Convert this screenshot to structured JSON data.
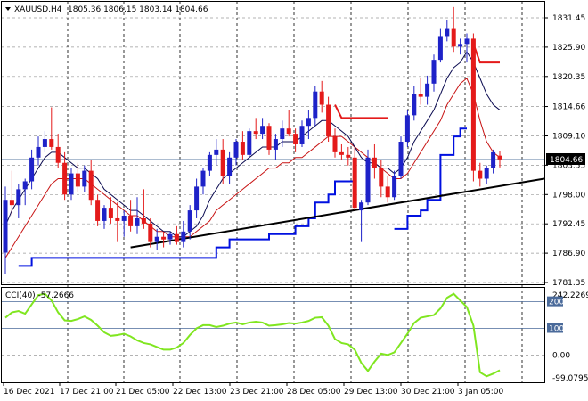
{
  "header": {
    "symbol_text": "XAUUSD,H4",
    "ohlc_text": "1805.36 1806.15 1803.14 1804.66"
  },
  "price_axis": {
    "ticks": [
      "1831.45",
      "1825.90",
      "1820.35",
      "1814.66",
      "1809.10",
      "1803.55",
      "1798.00",
      "1792.45",
      "1786.90",
      "1781.35"
    ],
    "current_price_label": "1804.66"
  },
  "cci_panel": {
    "label": "CCI(40) -57.2666",
    "ticks": [
      "242.2269",
      "200",
      "100",
      "0.00",
      "-99.0795"
    ]
  },
  "time_axis": {
    "labels": [
      "16 Dec 2021",
      "17 Dec 21:00",
      "21 Dec 05:00",
      "22 Dec 13:00",
      "23 Dec 21:00",
      "28 Dec 05:00",
      "29 Dec 13:00",
      "30 Dec 21:00",
      "3 Jan 05:00"
    ]
  },
  "colors": {
    "bull": "#1e22c8",
    "bear": "#e41a1a",
    "ma_fast": "#0a0a50",
    "ma_slow": "#c81414",
    "step_line": "#0010e0",
    "trendline": "#000000",
    "cci": "#80e620",
    "grid": "#9a9a9a",
    "level": "#4a6a9a"
  },
  "chart_data": {
    "type": "candlestick",
    "symbol": "XAUUSD",
    "timeframe": "H4",
    "ylim": [
      1781.35,
      1834.5
    ],
    "candles": [
      [
        1787.0,
        1799.5,
        1783.0,
        1797.0
      ],
      [
        1797.0,
        1802.5,
        1794.0,
        1796.0
      ],
      [
        1796.0,
        1800.0,
        1793.5,
        1799.0
      ],
      [
        1799.0,
        1801.0,
        1796.0,
        1800.5
      ],
      [
        1800.5,
        1806.5,
        1799.0,
        1805.0
      ],
      [
        1805.0,
        1809.0,
        1803.5,
        1807.0
      ],
      [
        1807.0,
        1810.0,
        1806.0,
        1808.5
      ],
      [
        1808.5,
        1814.5,
        1806.5,
        1807.0
      ],
      [
        1807.0,
        1809.5,
        1803.0,
        1804.0
      ],
      [
        1804.0,
        1806.0,
        1797.0,
        1798.0
      ],
      [
        1798.0,
        1803.0,
        1797.0,
        1802.0
      ],
      [
        1802.0,
        1804.0,
        1798.5,
        1799.5
      ],
      [
        1799.5,
        1803.5,
        1798.5,
        1802.5
      ],
      [
        1802.5,
        1804.5,
        1796.0,
        1797.0
      ],
      [
        1797.0,
        1798.0,
        1792.0,
        1793.0
      ],
      [
        1793.0,
        1796.0,
        1791.5,
        1795.5
      ],
      [
        1795.5,
        1797.5,
        1792.5,
        1793.5
      ],
      [
        1793.5,
        1796.5,
        1789.0,
        1793.0
      ],
      [
        1793.0,
        1795.0,
        1790.0,
        1794.0
      ],
      [
        1794.0,
        1797.0,
        1791.0,
        1792.0
      ],
      [
        1792.0,
        1797.5,
        1790.5,
        1793.5
      ],
      [
        1793.5,
        1799.0,
        1791.5,
        1792.5
      ],
      [
        1792.5,
        1793.5,
        1788.0,
        1789.0
      ],
      [
        1789.0,
        1791.5,
        1787.5,
        1790.0
      ],
      [
        1790.0,
        1791.0,
        1788.0,
        1789.5
      ],
      [
        1789.5,
        1791.0,
        1788.5,
        1790.5
      ],
      [
        1790.5,
        1792.0,
        1788.5,
        1789.0
      ],
      [
        1789.0,
        1793.0,
        1788.0,
        1791.0
      ],
      [
        1791.0,
        1796.0,
        1789.5,
        1795.0
      ],
      [
        1795.0,
        1801.0,
        1793.5,
        1799.5
      ],
      [
        1799.5,
        1803.0,
        1798.0,
        1802.5
      ],
      [
        1802.5,
        1806.0,
        1801.5,
        1805.5
      ],
      [
        1805.5,
        1808.5,
        1803.5,
        1806.5
      ],
      [
        1806.5,
        1808.5,
        1800.0,
        1801.5
      ],
      [
        1801.5,
        1806.0,
        1800.0,
        1805.0
      ],
      [
        1805.0,
        1808.5,
        1803.5,
        1808.0
      ],
      [
        1808.0,
        1810.0,
        1804.5,
        1805.5
      ],
      [
        1805.5,
        1810.5,
        1805.0,
        1810.0
      ],
      [
        1810.0,
        1812.5,
        1808.5,
        1809.5
      ],
      [
        1809.5,
        1812.5,
        1808.5,
        1811.0
      ],
      [
        1811.0,
        1811.5,
        1805.5,
        1806.5
      ],
      [
        1806.5,
        1809.5,
        1804.5,
        1808.5
      ],
      [
        1808.5,
        1812.0,
        1807.0,
        1810.5
      ],
      [
        1810.5,
        1814.0,
        1809.0,
        1809.5
      ],
      [
        1809.5,
        1810.5,
        1806.0,
        1807.5
      ],
      [
        1807.5,
        1812.0,
        1807.0,
        1811.0
      ],
      [
        1811.0,
        1814.0,
        1808.5,
        1812.5
      ],
      [
        1812.5,
        1818.5,
        1811.0,
        1817.5
      ],
      [
        1817.5,
        1819.5,
        1813.5,
        1815.0
      ],
      [
        1815.0,
        1816.5,
        1808.0,
        1809.0
      ],
      [
        1809.0,
        1810.5,
        1805.0,
        1806.0
      ],
      [
        1806.0,
        1807.5,
        1804.5,
        1805.5
      ],
      [
        1805.5,
        1807.0,
        1803.5,
        1805.0
      ],
      [
        1805.0,
        1807.0,
        1795.0,
        1795.5
      ],
      [
        1795.0,
        1797.0,
        1789.0,
        1796.5
      ],
      [
        1796.5,
        1806.5,
        1796.0,
        1805.0
      ],
      [
        1805.0,
        1807.5,
        1801.0,
        1803.0
      ],
      [
        1803.0,
        1804.5,
        1797.5,
        1799.5
      ],
      [
        1799.5,
        1801.5,
        1796.5,
        1797.5
      ],
      [
        1797.5,
        1802.5,
        1797.0,
        1801.5
      ],
      [
        1801.5,
        1809.0,
        1801.0,
        1808.0
      ],
      [
        1808.0,
        1814.0,
        1807.0,
        1813.0
      ],
      [
        1813.0,
        1818.5,
        1812.0,
        1817.0
      ],
      [
        1817.0,
        1820.0,
        1815.0,
        1816.5
      ],
      [
        1816.5,
        1820.5,
        1815.0,
        1819.0
      ],
      [
        1819.0,
        1824.5,
        1817.5,
        1823.5
      ],
      [
        1823.5,
        1829.5,
        1823.0,
        1828.0
      ],
      [
        1828.0,
        1831.0,
        1827.0,
        1829.5
      ],
      [
        1829.5,
        1833.5,
        1825.0,
        1826.0
      ],
      [
        1826.0,
        1827.5,
        1824.5,
        1826.5
      ],
      [
        1826.5,
        1828.5,
        1823.0,
        1827.5
      ],
      [
        1827.5,
        1828.5,
        1800.5,
        1802.5
      ],
      [
        1802.5,
        1804.0,
        1799.5,
        1801.0
      ],
      [
        1801.0,
        1803.5,
        1800.0,
        1803.0
      ],
      [
        1803.0,
        1806.5,
        1802.0,
        1806.0
      ],
      [
        1805.36,
        1806.15,
        1803.14,
        1804.66
      ]
    ],
    "ma_fast": [
      1792,
      1795,
      1797,
      1799,
      1801,
      1803,
      1805,
      1806,
      1806,
      1805,
      1804,
      1803,
      1803,
      1802,
      1801,
      1799,
      1798,
      1797,
      1796,
      1795,
      1795,
      1794,
      1793,
      1792,
      1791,
      1791,
      1790,
      1790,
      1791,
      1792,
      1794,
      1797,
      1799,
      1801,
      1802,
      1803,
      1804,
      1805,
      1806,
      1807,
      1807,
      1807,
      1808,
      1808,
      1808,
      1809,
      1810,
      1811,
      1812,
      1812,
      1811,
      1810,
      1809,
      1807,
      1805,
      1804,
      1804,
      1803,
      1803,
      1802,
      1803,
      1805,
      1808,
      1810,
      1812,
      1814,
      1817,
      1820,
      1822,
      1823,
      1825,
      1823,
      1820,
      1817,
      1815,
      1814
    ],
    "ma_slow": [
      1786,
      1788,
      1790,
      1792,
      1794,
      1796,
      1798,
      1800,
      1801,
      1801,
      1801,
      1801,
      1801,
      1800,
      1799,
      1798,
      1797,
      1796,
      1795,
      1794,
      1794,
      1793,
      1792,
      1791,
      1791,
      1790,
      1790,
      1790,
      1790,
      1791,
      1792,
      1793,
      1795,
      1796,
      1797,
      1798,
      1799,
      1800,
      1801,
      1802,
      1803,
      1803,
      1804,
      1804,
      1805,
      1805,
      1806,
      1807,
      1808,
      1809,
      1809,
      1809,
      1808,
      1807,
      1806,
      1805,
      1804,
      1803,
      1802,
      1801,
      1801,
      1802,
      1804,
      1806,
      1808,
      1810,
      1812,
      1815,
      1817,
      1819,
      1820,
      1817,
      1812,
      1808,
      1806,
      1805
    ],
    "step_line": [
      [
        2,
        1784.5
      ],
      [
        4,
        1786.0
      ],
      [
        6,
        1786.0
      ],
      [
        15,
        1786.0
      ],
      [
        24,
        1786.0
      ],
      [
        30,
        1786.0
      ],
      [
        32,
        1788.0
      ],
      [
        34,
        1789.5
      ],
      [
        40,
        1790.5
      ],
      [
        44,
        1792.0
      ],
      [
        46,
        1793.5
      ],
      [
        47,
        1796.5
      ],
      [
        49,
        1798.0
      ],
      [
        50,
        1800.5
      ],
      [
        53,
        1800.5
      ],
      [
        59,
        1791.5
      ],
      [
        61,
        1794.0
      ],
      [
        63,
        1795.0
      ],
      [
        64,
        1797.0
      ],
      [
        66,
        1805.5
      ],
      [
        68,
        1809.0
      ],
      [
        69,
        1810.5
      ],
      [
        70,
        1810.5
      ]
    ],
    "red_segments": [
      [
        [
          50,
          1815.0
        ],
        [
          51,
          1812.5
        ],
        [
          58,
          1812.5
        ]
      ],
      [
        [
          71,
          1826.5
        ],
        [
          72,
          1823.0
        ],
        [
          75,
          1823.0
        ]
      ]
    ],
    "trendline": [
      [
        19,
        1788.0
      ],
      [
        79,
        1801.0
      ]
    ],
    "cci": {
      "ylim": [
        -99.0795,
        242.2269
      ],
      "levels": [
        200,
        100,
        0
      ],
      "values": [
        140,
        160,
        165,
        155,
        190,
        225,
        230,
        205,
        160,
        130,
        128,
        135,
        145,
        132,
        110,
        85,
        72,
        75,
        80,
        70,
        55,
        45,
        40,
        30,
        20,
        20,
        28,
        45,
        75,
        100,
        112,
        112,
        105,
        110,
        118,
        122,
        115,
        122,
        125,
        122,
        110,
        112,
        115,
        120,
        118,
        122,
        128,
        140,
        142,
        110,
        60,
        45,
        40,
        20,
        -30,
        -60,
        -25,
        5,
        0,
        10,
        45,
        80,
        120,
        140,
        145,
        150,
        175,
        215,
        230,
        205,
        180,
        110,
        -65,
        -80,
        -70,
        -57.2666
      ]
    }
  }
}
